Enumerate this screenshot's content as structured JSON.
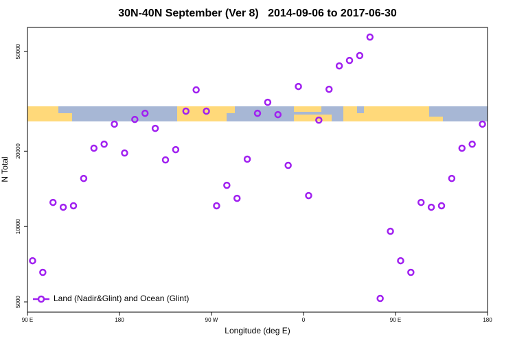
{
  "chart_data": {
    "type": "scatter",
    "title": "30N-40N September (Ver 8)   2014-09-06 to 2017-06-30",
    "x_label": "Longitude (deg E)",
    "y_label": "N Total",
    "y_log": true,
    "legend_position": "bottom-left",
    "xlim": [
      90,
      540
    ],
    "xticks": [
      {
        "value": 90,
        "label": "90 E"
      },
      180,
      {
        "value": 270,
        "label": "90 W"
      },
      {
        "value": 360,
        "label": "0"
      },
      {
        "value": 450,
        "label": "90 E"
      },
      {
        "value": 540,
        "label": "180"
      }
    ],
    "ylim": [
      4550,
      62400
    ],
    "yticks": [
      5000,
      10000,
      20000,
      50000
    ],
    "series": [
      {
        "name": "Land (Nadir&Glint) and Ocean (Glint)",
        "color": "#a020f0",
        "x": [
          95,
          105,
          115,
          125,
          135,
          145,
          155,
          165,
          175,
          185,
          195,
          205,
          215,
          225,
          235,
          245,
          255,
          265,
          275,
          285,
          295,
          305,
          315,
          325,
          335,
          345,
          355,
          365,
          375,
          385,
          395,
          405,
          415,
          425,
          435,
          445,
          455,
          465,
          475,
          485,
          495,
          505,
          515,
          525,
          535
        ],
        "values": [
          7300,
          6560,
          12480,
          11940,
          12100,
          15560,
          20550,
          21330,
          25640,
          19660,
          26780,
          28330,
          24660,
          18450,
          20280,
          28890,
          35130,
          28890,
          12100,
          14610,
          12960,
          18580,
          28330,
          31340,
          27990,
          17550,
          36250,
          13290,
          26600,
          35330,
          43800,
          46060,
          48170,
          57110,
          5160,
          9570,
          7300,
          6560,
          12480,
          11940,
          12100,
          15560,
          20550,
          21330,
          25640
        ]
      }
    ]
  }
}
